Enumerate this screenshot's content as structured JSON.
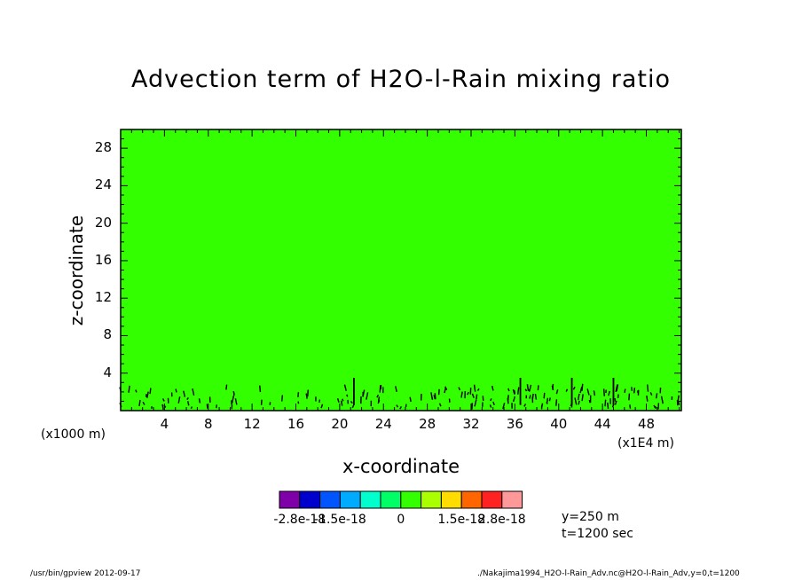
{
  "chart_data": {
    "type": "heatmap",
    "title": "Advection term of H2O-l-Rain mixing ratio",
    "xlabel": "x-coordinate",
    "ylabel": "z-coordinate",
    "x_unit_left": "(x1000 m)",
    "x_unit_right": "(x1E4 m)",
    "xlim": [
      0,
      51.2
    ],
    "ylim": [
      0,
      30
    ],
    "xticks": [
      "4",
      "8",
      "12",
      "16",
      "20",
      "24",
      "28",
      "32",
      "36",
      "40",
      "44",
      "48"
    ],
    "yticks": [
      "4",
      "8",
      "12",
      "16",
      "20",
      "24",
      "28"
    ],
    "field_value": 0,
    "field_color": "#33ff00",
    "contour_color": "#000000",
    "colorbar": {
      "colors": [
        "#7f00a8",
        "#0000cc",
        "#0055ff",
        "#00aaff",
        "#00ffcc",
        "#00ff66",
        "#33ff00",
        "#aaff00",
        "#ffdd00",
        "#ff6600",
        "#ff2222",
        "#ff9999"
      ],
      "labels": [
        "-2.8e-18",
        "-1.5e-18",
        "0",
        "1.5e-18",
        "2.8e-18"
      ]
    },
    "grid": false
  },
  "info": {
    "y": "y=250 m",
    "t": "t=1200 sec"
  },
  "footer": {
    "left": "/usr/bin/gpview   2012-09-17",
    "right": "./Nakajima1994_H2O-l-Rain_Adv.nc@H2O-l-Rain_Adv,y=0,t=1200"
  }
}
